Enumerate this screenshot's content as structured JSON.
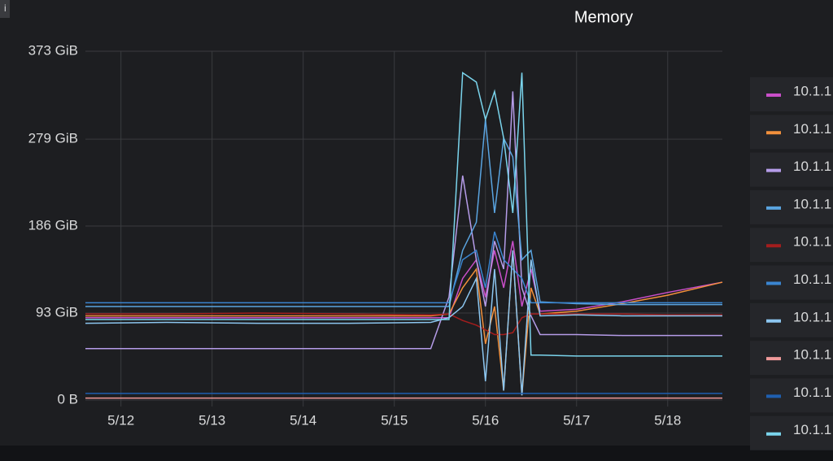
{
  "chart_data": {
    "type": "line",
    "title": "Memory",
    "x": [
      11.61,
      12.5,
      13.5,
      14.5,
      15.4,
      15.6,
      15.75,
      15.9,
      16.0,
      16.1,
      16.2,
      16.3,
      16.4,
      16.5,
      16.6,
      17.0,
      17.5,
      18.0,
      18.6
    ],
    "xlim": [
      11.61,
      18.6
    ],
    "xticks": [
      {
        "value": 12,
        "label": "5/12"
      },
      {
        "value": 13,
        "label": "5/13"
      },
      {
        "value": 14,
        "label": "5/14"
      },
      {
        "value": 15,
        "label": "5/15"
      },
      {
        "value": 16,
        "label": "5/16"
      },
      {
        "value": 17,
        "label": "5/17"
      },
      {
        "value": 18,
        "label": "5/18"
      }
    ],
    "ylim": [
      -7,
      373
    ],
    "yticks": [
      {
        "value": 0,
        "label": "0 B"
      },
      {
        "value": 93,
        "label": "93 GiB"
      },
      {
        "value": 186,
        "label": "186 GiB"
      },
      {
        "value": 279,
        "label": "279 GiB"
      },
      {
        "value": 373,
        "label": "373 GiB"
      }
    ],
    "grid": true,
    "series": [
      {
        "name": "10.1.1",
        "color": "#c94fc9",
        "values": [
          88,
          88,
          88,
          88,
          88,
          88,
          130,
          150,
          110,
          160,
          120,
          170,
          100,
          140,
          95,
          97,
          105,
          115,
          126
        ]
      },
      {
        "name": "10.1.1",
        "color": "#f2903c",
        "values": [
          90,
          90,
          90,
          90,
          90,
          92,
          120,
          140,
          60,
          100,
          10,
          160,
          5,
          120,
          92,
          95,
          103,
          112,
          126
        ]
      },
      {
        "name": "10.1.1",
        "color": "#b59ce8",
        "values": [
          55,
          55,
          55,
          55,
          55,
          110,
          240,
          150,
          100,
          170,
          140,
          330,
          120,
          90,
          70,
          70,
          69,
          69,
          69
        ]
      },
      {
        "name": "10.1.1",
        "color": "#5aa4e0",
        "values": [
          100,
          100,
          100,
          100,
          100,
          100,
          160,
          190,
          300,
          200,
          280,
          260,
          150,
          160,
          105,
          103,
          102,
          102,
          102
        ]
      },
      {
        "name": "10.1.1",
        "color": "#a31d1d",
        "values": [
          92,
          92,
          93,
          92,
          91,
          92,
          85,
          80,
          75,
          70,
          70,
          72,
          88,
          92,
          92,
          92,
          92,
          91,
          91
        ]
      },
      {
        "name": "10.1.1",
        "color": "#3a85d0",
        "values": [
          104,
          104,
          104,
          104,
          104,
          104,
          150,
          160,
          120,
          180,
          150,
          140,
          130,
          104,
          104,
          104,
          104,
          104,
          104
        ]
      },
      {
        "name": "10.1.1",
        "color": "#8cc6f0",
        "values": [
          82,
          83,
          82,
          82,
          83,
          88,
          100,
          130,
          20,
          140,
          10,
          160,
          5,
          150,
          90,
          91,
          90,
          90,
          90
        ]
      },
      {
        "name": "10.1.1",
        "color": "#f09a9a",
        "values": [
          2,
          2,
          2,
          2,
          2,
          2,
          2,
          2,
          2,
          2,
          2,
          2,
          2,
          2,
          2,
          2,
          2,
          2,
          2
        ]
      },
      {
        "name": "10.1.1",
        "color": "#1f5fb0",
        "values": [
          7,
          7,
          7,
          7,
          7,
          7,
          7,
          7,
          7,
          7,
          7,
          7,
          7,
          7,
          7,
          7,
          7,
          7,
          7
        ]
      },
      {
        "name": "10.1.1",
        "color": "#7ad4ec",
        "values": [
          86,
          86,
          86,
          86,
          86,
          86,
          350,
          340,
          300,
          330,
          280,
          200,
          350,
          48,
          48,
          47,
          47,
          47,
          47
        ]
      }
    ]
  }
}
